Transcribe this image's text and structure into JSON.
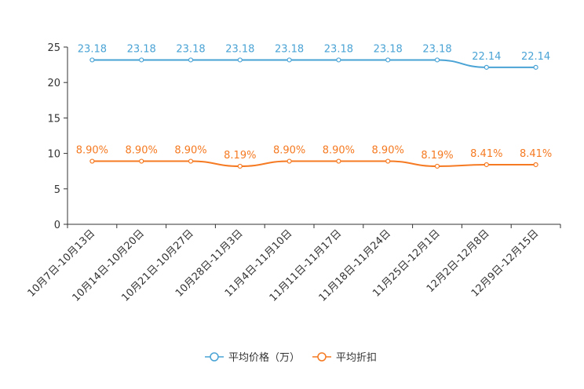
{
  "chart_data": {
    "type": "line",
    "title": "",
    "xlabel": "",
    "ylabel": "",
    "ylim": [
      0,
      25
    ],
    "yticks": [
      0,
      5,
      10,
      15,
      20,
      25
    ],
    "grid": false,
    "legend_position": "bottom-center",
    "categories": [
      "10月7日-10月13日",
      "10月14日-10月20日",
      "10月21日-10月27日",
      "10月28日-11月3日",
      "11月4日-11月10日",
      "11月11日-11月17日",
      "11月18日-11月24日",
      "11月25日-12月1日",
      "12月2日-12月8日",
      "12月9日-12月15日"
    ],
    "series": [
      {
        "name": "平均价格（万）",
        "color": "#4aa3d5",
        "values": [
          23.18,
          23.18,
          23.18,
          23.18,
          23.18,
          23.18,
          23.18,
          23.18,
          22.14,
          22.14
        ],
        "labels": [
          "23.18",
          "23.18",
          "23.18",
          "23.18",
          "23.18",
          "23.18",
          "23.18",
          "23.18",
          "22.14",
          "22.14"
        ]
      },
      {
        "name": "平均折扣",
        "color": "#f57a22",
        "values": [
          8.9,
          8.9,
          8.9,
          8.19,
          8.9,
          8.9,
          8.9,
          8.19,
          8.41,
          8.41
        ],
        "labels": [
          "8.90%",
          "8.90%",
          "8.90%",
          "8.19%",
          "8.90%",
          "8.90%",
          "8.90%",
          "8.19%",
          "8.41%",
          "8.41%"
        ]
      }
    ]
  }
}
